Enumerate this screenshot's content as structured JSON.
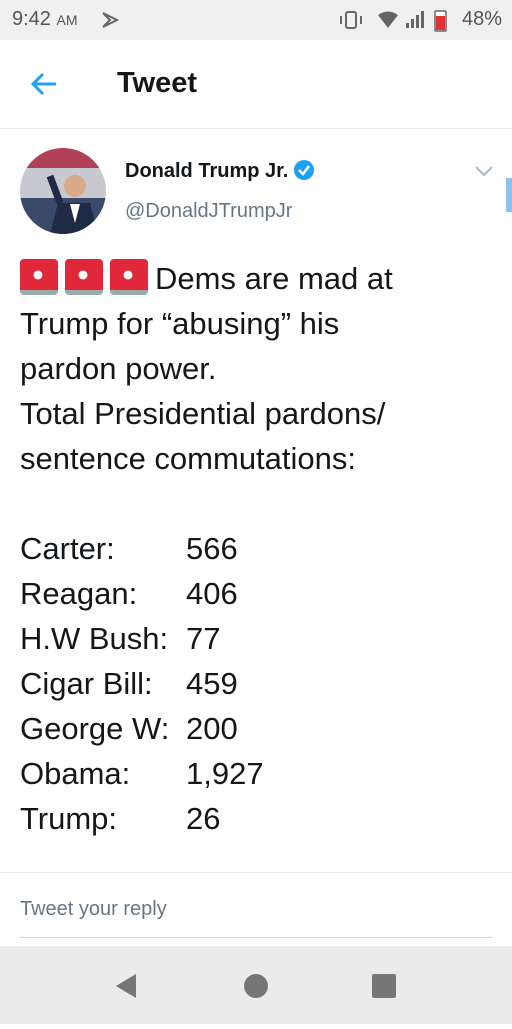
{
  "status_bar": {
    "time": "9:42",
    "ampm": "AM",
    "battery": "48%"
  },
  "header": {
    "title": "Tweet"
  },
  "tweet": {
    "author": "Donald Trump Jr.",
    "handle": "@DonaldJTrumpJr",
    "text_lines": [
      "Dems are mad at",
      "Trump for “abusing” his",
      "pardon power.",
      "Total Presidential pardons/",
      "sentence commutations:"
    ],
    "list": [
      [
        "Carter:",
        "566"
      ],
      [
        "Reagan:",
        "406"
      ],
      [
        "H.W Bush:",
        "77"
      ],
      [
        "Cigar Bill:",
        "459"
      ],
      [
        "George W:",
        "200"
      ],
      [
        "Obama:",
        "1,927"
      ],
      [
        "Trump:",
        "26"
      ]
    ]
  },
  "reply": {
    "placeholder": "Tweet your reply"
  }
}
